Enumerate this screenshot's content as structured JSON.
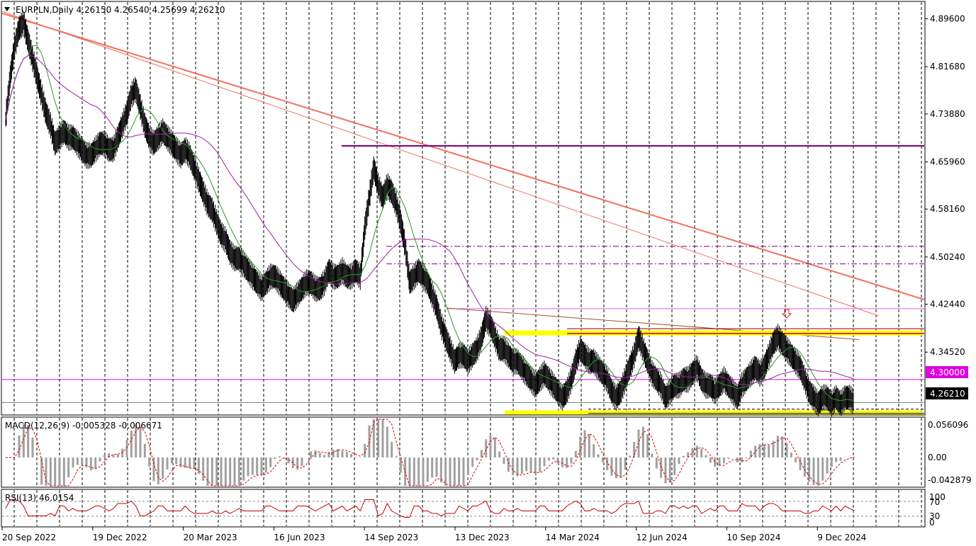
{
  "header": {
    "symbol_line": "EURPLN,Daily  4.26150 4.26540 4.25699 4.26210"
  },
  "price_axis": {
    "ticks": [
      "4.89600",
      "4.81680",
      "4.73880",
      "4.65960",
      "4.58160",
      "4.50240",
      "4.42440",
      "4.34520"
    ],
    "level_tag": "4.30000",
    "last_price_tag": "4.26210"
  },
  "date_axis": {
    "labels": [
      "20 Sep 2022",
      "19 Dec 2022",
      "20 Mar 2023",
      "16 Jun 2023",
      "14 Sep 2023",
      "13 Dec 2023",
      "14 Mar 2024",
      "12 Jun 2024",
      "10 Sep 2024",
      "9 Dec 2024"
    ]
  },
  "macd": {
    "label": "MACD(12,26,9) -0.005328 -0.006671",
    "ticks": [
      "0.056096",
      "0.00",
      "-0.042879"
    ]
  },
  "rsi": {
    "label": "RSI(13) 46.0154",
    "ticks": [
      "100",
      "70",
      "30",
      "0"
    ]
  },
  "colors": {
    "price_bars": "#000000",
    "ma_fast": "#2a9a2a",
    "ma_slow": "#a020a0",
    "trend_line": "#f07060",
    "resistance_line": "#800080",
    "level_line": "#e000e0",
    "support_zone": "#ffff00",
    "macd_signal": "#e00000",
    "macd_hist": "#a0a0a0",
    "rsi_line": "#c00000"
  },
  "chart_data": {
    "type": "line",
    "title": "EURPLN,Daily",
    "x": [
      "20 Sep 2022",
      "19 Dec 2022",
      "20 Mar 2023",
      "16 Jun 2023",
      "14 Sep 2023",
      "13 Dec 2023",
      "14 Mar 2024",
      "12 Jun 2024",
      "10 Sep 2024",
      "9 Dec 2024"
    ],
    "ylim": [
      4.2425,
      4.9235
    ],
    "series": [
      {
        "values": [
          [
            0,
            4.73
          ],
          [
            1,
            4.8
          ],
          [
            2,
            4.85
          ],
          [
            3,
            4.88
          ],
          [
            4,
            4.89
          ],
          [
            5,
            4.86
          ],
          [
            6,
            4.83
          ],
          [
            7,
            4.8
          ],
          [
            8,
            4.77
          ],
          [
            9,
            4.74
          ],
          [
            10,
            4.72
          ],
          [
            11,
            4.69
          ],
          [
            12,
            4.7
          ],
          [
            13,
            4.71
          ],
          [
            14,
            4.7
          ],
          [
            15,
            4.7
          ],
          [
            16,
            4.69
          ],
          [
            17,
            4.68
          ],
          [
            18,
            4.67
          ],
          [
            19,
            4.67
          ],
          [
            20,
            4.68
          ],
          [
            21,
            4.69
          ],
          [
            22,
            4.69
          ],
          [
            23,
            4.68
          ],
          [
            24,
            4.68
          ],
          [
            25,
            4.7
          ],
          [
            26,
            4.72
          ],
          [
            27,
            4.74
          ],
          [
            28,
            4.77
          ],
          [
            29,
            4.78
          ],
          [
            30,
            4.75
          ],
          [
            31,
            4.72
          ],
          [
            32,
            4.7
          ],
          [
            33,
            4.69
          ],
          [
            34,
            4.7
          ],
          [
            35,
            4.71
          ],
          [
            36,
            4.7
          ],
          [
            37,
            4.69
          ],
          [
            38,
            4.68
          ],
          [
            39,
            4.67
          ],
          [
            40,
            4.68
          ],
          [
            41,
            4.67
          ],
          [
            42,
            4.65
          ],
          [
            43,
            4.63
          ],
          [
            44,
            4.61
          ],
          [
            45,
            4.59
          ],
          [
            46,
            4.58
          ],
          [
            47,
            4.56
          ],
          [
            48,
            4.54
          ],
          [
            49,
            4.53
          ],
          [
            50,
            4.51
          ],
          [
            51,
            4.5
          ],
          [
            52,
            4.5
          ],
          [
            53,
            4.49
          ],
          [
            54,
            4.48
          ],
          [
            55,
            4.47
          ],
          [
            56,
            4.46
          ],
          [
            57,
            4.45
          ],
          [
            58,
            4.46
          ],
          [
            59,
            4.47
          ],
          [
            60,
            4.47
          ],
          [
            61,
            4.46
          ],
          [
            62,
            4.45
          ],
          [
            63,
            4.44
          ],
          [
            64,
            4.43
          ],
          [
            65,
            4.44
          ],
          [
            66,
            4.45
          ],
          [
            67,
            4.46
          ],
          [
            68,
            4.46
          ],
          [
            69,
            4.45
          ],
          [
            70,
            4.45
          ],
          [
            71,
            4.46
          ],
          [
            72,
            4.48
          ],
          [
            73,
            4.47
          ],
          [
            74,
            4.47
          ],
          [
            75,
            4.48
          ],
          [
            76,
            4.47
          ],
          [
            77,
            4.47
          ],
          [
            78,
            4.48
          ],
          [
            79,
            4.47
          ],
          [
            80,
            4.55
          ],
          [
            81,
            4.6
          ],
          [
            82,
            4.65
          ],
          [
            83,
            4.62
          ],
          [
            84,
            4.6
          ],
          [
            85,
            4.62
          ],
          [
            86,
            4.61
          ],
          [
            87,
            4.59
          ],
          [
            88,
            4.56
          ],
          [
            89,
            4.52
          ],
          [
            90,
            4.46
          ],
          [
            91,
            4.47
          ],
          [
            92,
            4.48
          ],
          [
            93,
            4.47
          ],
          [
            94,
            4.46
          ],
          [
            95,
            4.44
          ],
          [
            96,
            4.42
          ],
          [
            97,
            4.39
          ],
          [
            98,
            4.37
          ],
          [
            99,
            4.35
          ],
          [
            100,
            4.33
          ],
          [
            101,
            4.34
          ],
          [
            102,
            4.34
          ],
          [
            103,
            4.33
          ],
          [
            104,
            4.34
          ],
          [
            105,
            4.35
          ],
          [
            106,
            4.37
          ],
          [
            107,
            4.4
          ],
          [
            108,
            4.39
          ],
          [
            109,
            4.37
          ],
          [
            110,
            4.35
          ],
          [
            111,
            4.35
          ],
          [
            112,
            4.34
          ],
          [
            113,
            4.33
          ],
          [
            114,
            4.33
          ],
          [
            115,
            4.32
          ],
          [
            116,
            4.31
          ],
          [
            117,
            4.3
          ],
          [
            118,
            4.29
          ],
          [
            119,
            4.3
          ],
          [
            120,
            4.31
          ],
          [
            121,
            4.3
          ],
          [
            122,
            4.29
          ],
          [
            123,
            4.28
          ],
          [
            124,
            4.27
          ],
          [
            125,
            4.28
          ],
          [
            126,
            4.3
          ],
          [
            127,
            4.33
          ],
          [
            128,
            4.35
          ],
          [
            129,
            4.34
          ],
          [
            130,
            4.33
          ],
          [
            131,
            4.33
          ],
          [
            132,
            4.32
          ],
          [
            133,
            4.31
          ],
          [
            134,
            4.3
          ],
          [
            135,
            4.28
          ],
          [
            136,
            4.27
          ],
          [
            137,
            4.28
          ],
          [
            138,
            4.3
          ],
          [
            139,
            4.32
          ],
          [
            140,
            4.34
          ],
          [
            141,
            4.37
          ],
          [
            142,
            4.35
          ],
          [
            143,
            4.33
          ],
          [
            144,
            4.31
          ],
          [
            145,
            4.3
          ],
          [
            146,
            4.29
          ],
          [
            147,
            4.27
          ],
          [
            148,
            4.28
          ],
          [
            149,
            4.29
          ],
          [
            150,
            4.29
          ],
          [
            151,
            4.3
          ],
          [
            152,
            4.3
          ],
          [
            153,
            4.31
          ],
          [
            154,
            4.32
          ],
          [
            155,
            4.3
          ],
          [
            156,
            4.29
          ],
          [
            157,
            4.29
          ],
          [
            158,
            4.28
          ],
          [
            159,
            4.29
          ],
          [
            160,
            4.3
          ],
          [
            161,
            4.29
          ],
          [
            162,
            4.28
          ],
          [
            163,
            4.27
          ],
          [
            164,
            4.29
          ],
          [
            165,
            4.3
          ],
          [
            166,
            4.31
          ],
          [
            167,
            4.32
          ],
          [
            168,
            4.31
          ],
          [
            169,
            4.32
          ],
          [
            170,
            4.34
          ],
          [
            171,
            4.36
          ],
          [
            172,
            4.37
          ],
          [
            173,
            4.36
          ],
          [
            174,
            4.35
          ],
          [
            175,
            4.34
          ],
          [
            176,
            4.33
          ],
          [
            177,
            4.32
          ],
          [
            178,
            4.3
          ],
          [
            179,
            4.28
          ],
          [
            180,
            4.27
          ],
          [
            181,
            4.26
          ],
          [
            182,
            4.27
          ],
          [
            183,
            4.27
          ],
          [
            184,
            4.26
          ],
          [
            185,
            4.27
          ],
          [
            186,
            4.26
          ],
          [
            187,
            4.27
          ],
          [
            188,
            4.27
          ],
          [
            189,
            4.262
          ]
        ]
      }
    ]
  }
}
